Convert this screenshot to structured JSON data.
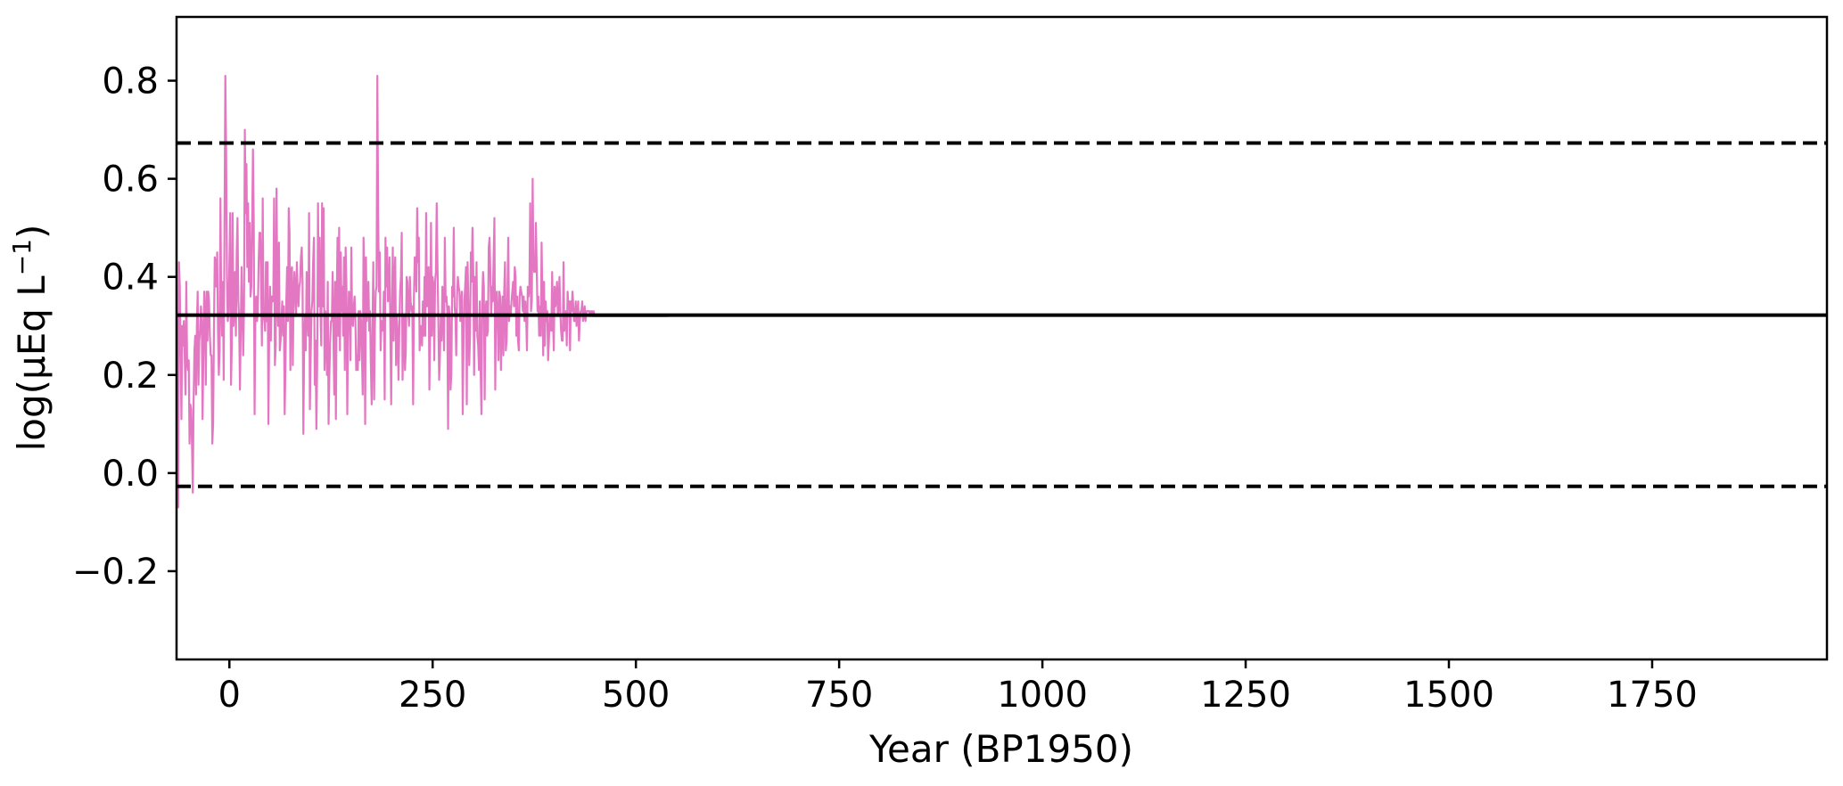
{
  "chart_data": {
    "type": "line",
    "xlabel": "Year (BP1950)",
    "ylabel_base": "log(μEq L",
    "ylabel_sup": "−1",
    "ylabel_close": ")",
    "xlim": [
      -65,
      1965
    ],
    "ylim": [
      -0.38,
      0.93
    ],
    "xticks": [
      0,
      250,
      500,
      750,
      1000,
      1250,
      1500,
      1750
    ],
    "xtick_labels": [
      "0",
      "250",
      "500",
      "750",
      "1000",
      "1250",
      "1500",
      "1750"
    ],
    "yticks": [
      -0.2,
      0.0,
      0.2,
      0.4,
      0.6,
      0.8
    ],
    "ytick_labels": [
      "−0.2",
      "0.0",
      "0.2",
      "0.4",
      "0.6",
      "0.8"
    ],
    "grid": false,
    "mean_line": 0.322,
    "threshold_lines": [
      0.673,
      -0.027
    ],
    "series": [
      {
        "color": "#e377c2",
        "x_start": -65,
        "x_step": 1,
        "values": [
          0.33,
          0.27,
          -0.07,
          0.43,
          0.38,
          0.25,
          0.11,
          0.3,
          0.26,
          0.31,
          0.24,
          0.16,
          0.39,
          0.23,
          0.21,
          0.23,
          0.06,
          0.14,
          0.13,
          0.06,
          -0.04,
          0.15,
          0.25,
          0.28,
          0.16,
          0.3,
          0.37,
          0.18,
          0.27,
          0.29,
          0.34,
          0.31,
          0.11,
          0.24,
          0.37,
          0.33,
          0.18,
          0.37,
          0.27,
          0.37,
          0.35,
          0.28,
          0.24,
          0.24,
          0.06,
          0.1,
          0.29,
          0.44,
          0.43,
          0.38,
          0.45,
          0.29,
          0.2,
          0.25,
          0.56,
          0.34,
          0.28,
          0.39,
          0.19,
          0.51,
          0.81,
          0.66,
          0.4,
          0.31,
          0.33,
          0.43,
          0.53,
          0.18,
          0.26,
          0.53,
          0.3,
          0.33,
          0.41,
          0.28,
          0.45,
          0.52,
          0.35,
          0.31,
          0.17,
          0.3,
          0.42,
          0.32,
          0.24,
          0.34,
          0.7,
          0.53,
          0.63,
          0.42,
          0.55,
          0.39,
          0.51,
          0.36,
          0.38,
          0.51,
          0.66,
          0.51,
          0.12,
          0.33,
          0.36,
          0.31,
          0.33,
          0.43,
          0.49,
          0.49,
          0.39,
          0.26,
          0.56,
          0.32,
          0.31,
          0.29,
          0.43,
          0.31,
          0.43,
          0.1,
          0.29,
          0.38,
          0.27,
          0.36,
          0.36,
          0.35,
          0.56,
          0.22,
          0.26,
          0.58,
          0.35,
          0.3,
          0.47,
          0.25,
          0.27,
          0.31,
          0.35,
          0.28,
          0.34,
          0.12,
          0.22,
          0.35,
          0.42,
          0.31,
          0.54,
          0.49,
          0.21,
          0.41,
          0.42,
          0.22,
          0.36,
          0.41,
          0.36,
          0.32,
          0.43,
          0.37,
          0.34,
          0.38,
          0.39,
          0.44,
          0.46,
          0.39,
          0.08,
          0.27,
          0.32,
          0.25,
          0.41,
          0.32,
          0.28,
          0.53,
          0.13,
          0.24,
          0.33,
          0.35,
          0.43,
          0.48,
          0.18,
          0.27,
          0.09,
          0.22,
          0.55,
          0.34,
          0.48,
          0.33,
          0.26,
          0.55,
          0.34,
          0.54,
          0.21,
          0.33,
          0.28,
          0.2,
          0.39,
          0.1,
          0.2,
          0.27,
          0.31,
          0.31,
          0.41,
          0.28,
          0.16,
          0.39,
          0.11,
          0.35,
          0.48,
          0.28,
          0.5,
          0.25,
          0.45,
          0.33,
          0.38,
          0.28,
          0.44,
          0.21,
          0.46,
          0.38,
          0.12,
          0.29,
          0.37,
          0.34,
          0.23,
          0.46,
          0.31,
          0.3,
          0.34,
          0.36,
          0.31,
          0.21,
          0.24,
          0.21,
          0.33,
          0.23,
          0.33,
          0.31,
          0.24,
          0.16,
          0.48,
          0.4,
          0.1,
          0.44,
          0.31,
          0.34,
          0.39,
          0.29,
          0.33,
          0.22,
          0.14,
          0.29,
          0.43,
          0.15,
          0.3,
          0.37,
          0.38,
          0.81,
          0.53,
          0.37,
          0.45,
          0.25,
          0.31,
          0.29,
          0.3,
          0.37,
          0.15,
          0.48,
          0.38,
          0.46,
          0.35,
          0.36,
          0.44,
          0.29,
          0.14,
          0.33,
          0.46,
          0.27,
          0.39,
          0.44,
          0.22,
          0.32,
          0.28,
          0.19,
          0.29,
          0.37,
          0.4,
          0.49,
          0.19,
          0.29,
          0.32,
          0.21,
          0.25,
          0.4,
          0.39,
          0.33,
          0.3,
          0.4,
          0.35,
          0.33,
          0.34,
          0.14,
          0.36,
          0.44,
          0.44,
          0.37,
          0.54,
          0.43,
          0.48,
          0.25,
          0.3,
          0.28,
          0.26,
          0.35,
          0.28,
          0.4,
          0.28,
          0.53,
          0.34,
          0.38,
          0.42,
          0.17,
          0.29,
          0.51,
          0.28,
          0.4,
          0.38,
          0.23,
          0.39,
          0.41,
          0.55,
          0.42,
          0.31,
          0.19,
          0.24,
          0.32,
          0.27,
          0.38,
          0.33,
          0.25,
          0.48,
          0.35,
          0.36,
          0.33,
          0.09,
          0.34,
          0.32,
          0.17,
          0.2,
          0.38,
          0.36,
          0.5,
          0.34,
          0.32,
          0.24,
          0.36,
          0.4,
          0.38,
          0.37,
          0.31,
          0.35,
          0.37,
          0.12,
          0.26,
          0.35,
          0.38,
          0.42,
          0.14,
          0.43,
          0.34,
          0.22,
          0.28,
          0.45,
          0.39,
          0.5,
          0.41,
          0.2,
          0.4,
          0.29,
          0.43,
          0.28,
          0.26,
          0.21,
          0.35,
          0.21,
          0.12,
          0.35,
          0.41,
          0.38,
          0.15,
          0.33,
          0.35,
          0.28,
          0.29,
          0.46,
          0.48,
          0.41,
          0.32,
          0.38,
          0.35,
          0.44,
          0.52,
          0.17,
          0.35,
          0.37,
          0.31,
          0.23,
          0.37,
          0.36,
          0.21,
          0.31,
          0.36,
          0.24,
          0.37,
          0.43,
          0.25,
          0.27,
          0.36,
          0.48,
          0.31,
          0.34,
          0.32,
          0.35,
          0.37,
          0.39,
          0.34,
          0.42,
          0.4,
          0.28,
          0.36,
          0.27,
          0.25,
          0.36,
          0.38,
          0.37,
          0.36,
          0.33,
          0.36,
          0.31,
          0.35,
          0.32,
          0.25,
          0.38,
          0.36,
          0.38,
          0.55,
          0.33,
          0.35,
          0.6,
          0.42,
          0.41,
          0.41,
          0.51,
          0.42,
          0.33,
          0.36,
          0.28,
          0.34,
          0.28,
          0.47,
          0.36,
          0.24,
          0.39,
          0.26,
          0.35,
          0.31,
          0.33,
          0.23,
          0.27,
          0.32,
          0.31,
          0.29,
          0.41,
          0.32,
          0.25,
          0.38,
          0.34,
          0.36,
          0.39,
          0.32,
          0.34,
          0.4,
          0.33,
          0.29,
          0.27,
          0.27,
          0.43,
          0.29,
          0.32,
          0.33,
          0.26,
          0.37,
          0.34,
          0.35,
          0.25,
          0.35,
          0.33,
          0.37,
          0.34,
          0.31,
          0.31,
          0.35,
          0.3,
          0.32,
          0.35,
          0.27,
          0.31,
          0.33,
          0.33,
          0.35,
          0.31,
          0.32,
          0.34,
          0.31,
          0.33,
          0.33,
          0.33,
          0.33,
          0.33,
          0.32,
          0.33,
          0.33,
          0.32,
          0.33,
          0.32,
          0.32,
          0.32,
          0.32,
          0.32,
          0.32,
          0.32,
          0.32,
          0.32,
          0.32,
          0.32,
          0.32,
          0.32,
          0.32,
          0.32,
          0.32,
          0.32,
          0.32,
          0.32,
          0.32,
          0.32,
          0.32,
          0.32,
          0.32,
          0.32,
          0.32,
          0.32,
          0.32,
          0.32,
          0.32,
          0.32,
          0.32,
          0.32,
          0.32,
          0.32,
          0.32,
          0.32,
          0.32,
          0.32,
          0.32,
          0.32,
          0.32,
          0.32,
          0.32,
          0.32,
          0.32,
          0.32,
          0.32,
          0.32,
          0.32,
          0.32,
          0.32,
          0.32,
          0.32,
          0.32,
          0.32,
          0.32,
          0.32,
          0.32,
          0.32,
          0.32,
          0.32,
          0.32,
          0.32,
          0.32,
          0.32,
          0.32,
          0.32,
          0.32,
          0.32,
          0.32,
          0.32,
          0.32,
          0.32,
          0.32,
          0.32,
          0.32,
          0.32,
          0.32,
          0.32,
          0.32,
          0.32,
          0.32,
          0.32,
          0.32,
          0.32,
          0.32,
          0.32,
          0.32,
          0.32,
          0.32,
          0.32
        ]
      }
    ]
  }
}
